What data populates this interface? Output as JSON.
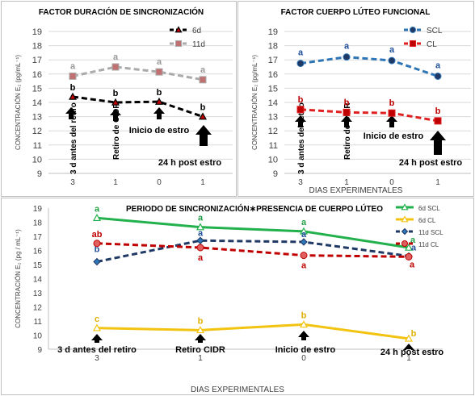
{
  "chart_data": [
    {
      "type": "line",
      "title": "FACTOR DURACIÓN DE SINCRONIZACIÓN",
      "xlabel": "",
      "ylabel": "CONCENTRACIÓN E₂ (pg/mL⁻¹)",
      "categories": [
        "3",
        "1",
        "0",
        "1"
      ],
      "ylim": [
        9,
        19
      ],
      "yticks": [
        9,
        10,
        11,
        12,
        13,
        14,
        15,
        16,
        17,
        18,
        19
      ],
      "grid": true,
      "legend": "top-right",
      "series": [
        {
          "name": "6d",
          "values": [
            14.4,
            14.0,
            14.05,
            13.0
          ],
          "letters": [
            "b",
            "b",
            "b",
            "b"
          ],
          "color": "#000000",
          "letter_color": "#000000",
          "marker": "triangle",
          "marker_fill": "#c00000"
        },
        {
          "name": "11d",
          "values": [
            15.85,
            16.5,
            16.15,
            15.6
          ],
          "letters": [
            "a",
            "a",
            "a",
            "a"
          ],
          "color": "#aaaaaa",
          "letter_color": "#999999",
          "marker": "square",
          "marker_fill": "#c07070"
        }
      ],
      "annotations": [
        {
          "text": "3 d antes del retiro",
          "category": 0
        },
        {
          "text": "Retiro de CIDR",
          "category": 1
        },
        {
          "text": "Inicio de estro",
          "category": 2
        },
        {
          "text": "24 h post estro",
          "category": 3
        }
      ]
    },
    {
      "type": "line",
      "title": "FACTOR CUERPO LÚTEO FUNCIONAL",
      "xlabel": "DIAS EXPERIMENTALES",
      "ylabel": "CONCENTRACIÓN E₂ (pg/mL⁻¹)",
      "categories": [
        "3",
        "1",
        "0",
        "1"
      ],
      "ylim": [
        9,
        19
      ],
      "yticks": [
        9,
        10,
        11,
        12,
        13,
        14,
        15,
        16,
        17,
        18,
        19
      ],
      "grid": true,
      "legend": "top-right",
      "series": [
        {
          "name": "SCL",
          "values": [
            16.75,
            17.2,
            16.95,
            15.85
          ],
          "letters": [
            "a",
            "a",
            "a",
            "a"
          ],
          "color": "#2e75b6",
          "letter_color": "#1f4e9a",
          "marker": "circle",
          "marker_fill": "#1f3864"
        },
        {
          "name": "CL",
          "values": [
            13.5,
            13.3,
            13.25,
            12.7
          ],
          "letters": [
            "b",
            "b",
            "b",
            "b"
          ],
          "color": "#e02020",
          "letter_color": "#c00000",
          "marker": "square",
          "marker_fill": "#c00000"
        }
      ],
      "annotations": [
        {
          "text": "3 d antes del retiro",
          "category": 0
        },
        {
          "text": "Retiro de CIDR",
          "category": 1
        },
        {
          "text": "Inicio de estro",
          "category": 2
        },
        {
          "text": "24 h post estro",
          "category": 3
        }
      ]
    },
    {
      "type": "line",
      "title": "PERIODO DE SINCRONIZACIÓN∗PRESENCIA DE CUERPO LÚTEO",
      "xlabel": "DIAS EXPERIMENTALES",
      "ylabel": "CONCENTRACIÓN E₂ (pg / mL⁻¹)",
      "categories": [
        "3",
        "1",
        "0",
        "1"
      ],
      "ylim": [
        9,
        19
      ],
      "yticks": [
        9,
        10,
        11,
        12,
        13,
        14,
        15,
        16,
        17,
        18,
        19
      ],
      "grid": false,
      "legend": "top-right",
      "series": [
        {
          "name": "6d SCL",
          "values": [
            18.3,
            17.65,
            17.35,
            16.2
          ],
          "letters": [
            "a",
            "a",
            "a",
            "a"
          ],
          "color": "#22b14c",
          "letter_color": "#22a045",
          "marker": "triangle",
          "marker_fill": "#ffffff",
          "dashed": false
        },
        {
          "name": "6d CL",
          "values": [
            10.5,
            10.35,
            10.75,
            9.75
          ],
          "letters": [
            "c",
            "b",
            "b",
            "b"
          ],
          "color": "#f2c311",
          "letter_color": "#e0b000",
          "marker": "triangle",
          "marker_fill": "#ffffff",
          "dashed": false
        },
        {
          "name": "11d SCL",
          "values": [
            15.2,
            16.7,
            16.6,
            15.6
          ],
          "letters": [
            "b",
            "a",
            "a",
            "a"
          ],
          "color": "#1f3864",
          "letter_color": "#1f4e9a",
          "marker": "diamond",
          "marker_fill": "#2e75b6",
          "dashed": true
        },
        {
          "name": "11d CL",
          "values": [
            16.5,
            16.2,
            15.65,
            15.55
          ],
          "letters": [
            "ab",
            "a",
            "a",
            "a"
          ],
          "color": "#c00000",
          "letter_color": "#c00000",
          "marker": "circle",
          "marker_fill": "#e06060",
          "dashed": true
        }
      ],
      "annotations": [
        {
          "text": "3 d antes del retiro",
          "category": 0
        },
        {
          "text": "Retiro CIDR",
          "category": 1
        },
        {
          "text": "Inicio de estro",
          "category": 2
        },
        {
          "text": "24 h post estro",
          "category": 3
        }
      ]
    }
  ]
}
